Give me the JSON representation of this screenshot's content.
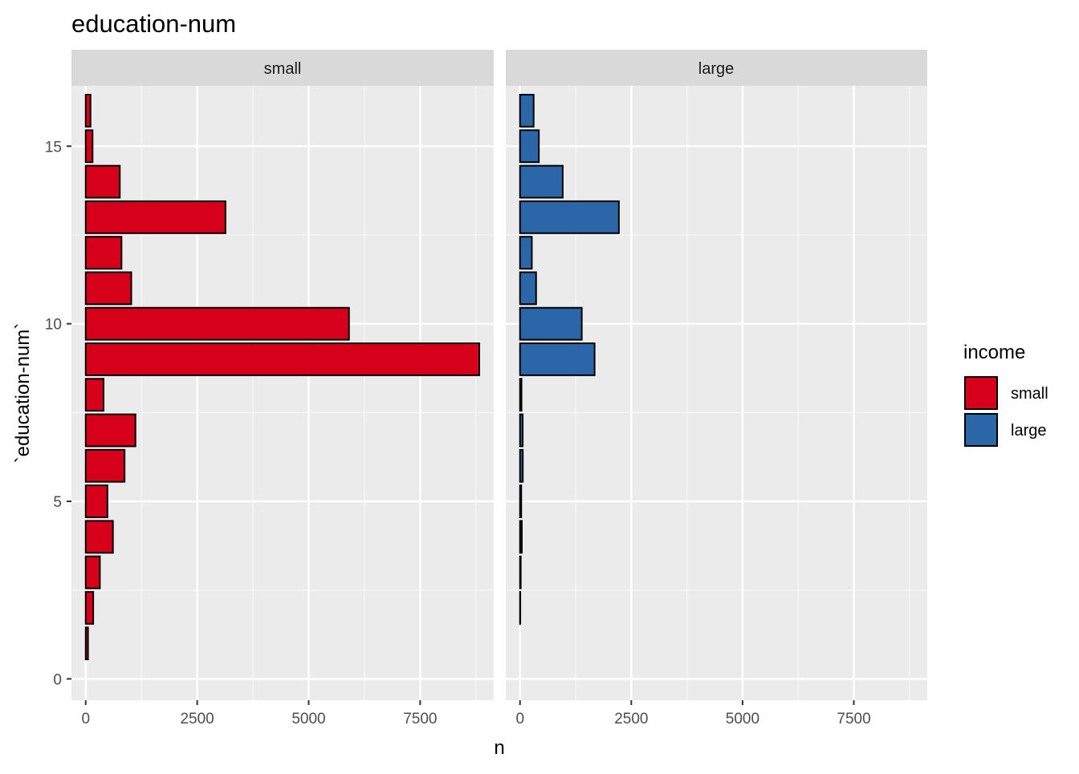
{
  "chart_data": {
    "type": "bar",
    "orientation": "horizontal",
    "title": "education-num",
    "xlabel": "n",
    "ylabel": "`education-num`",
    "xlim": [
      -320,
      9150
    ],
    "ylim": [
      -0.6,
      16.7
    ],
    "x_ticks": [
      0,
      2500,
      5000,
      7500
    ],
    "x_tick_labels": [
      "0",
      "2500",
      "5000",
      "7500"
    ],
    "y_ticks": [
      0,
      5,
      10,
      15
    ],
    "y_tick_labels": [
      "0",
      "5",
      "10",
      "15"
    ],
    "grid": true,
    "legend": {
      "title": "income",
      "position": "right",
      "entries": [
        {
          "label": "small",
          "color": "#D7001A"
        },
        {
          "label": "large",
          "color": "#2B67A8"
        }
      ]
    },
    "categories": [
      1,
      2,
      3,
      4,
      5,
      6,
      7,
      8,
      9,
      10,
      11,
      12,
      13,
      14,
      15,
      16
    ],
    "panels": [
      {
        "strip": "small",
        "color": "#D7001A",
        "values": [
          51,
          168,
          317,
          610,
          487,
          871,
          1115,
          400,
          8826,
          5904,
          1021,
          802,
          3134,
          764,
          153,
          107
        ]
      },
      {
        "strip": "large",
        "color": "#2B67A8",
        "values": [
          0,
          6,
          16,
          40,
          27,
          62,
          60,
          33,
          1675,
          1387,
          361,
          265,
          2221,
          959,
          423,
          306
        ]
      }
    ]
  }
}
